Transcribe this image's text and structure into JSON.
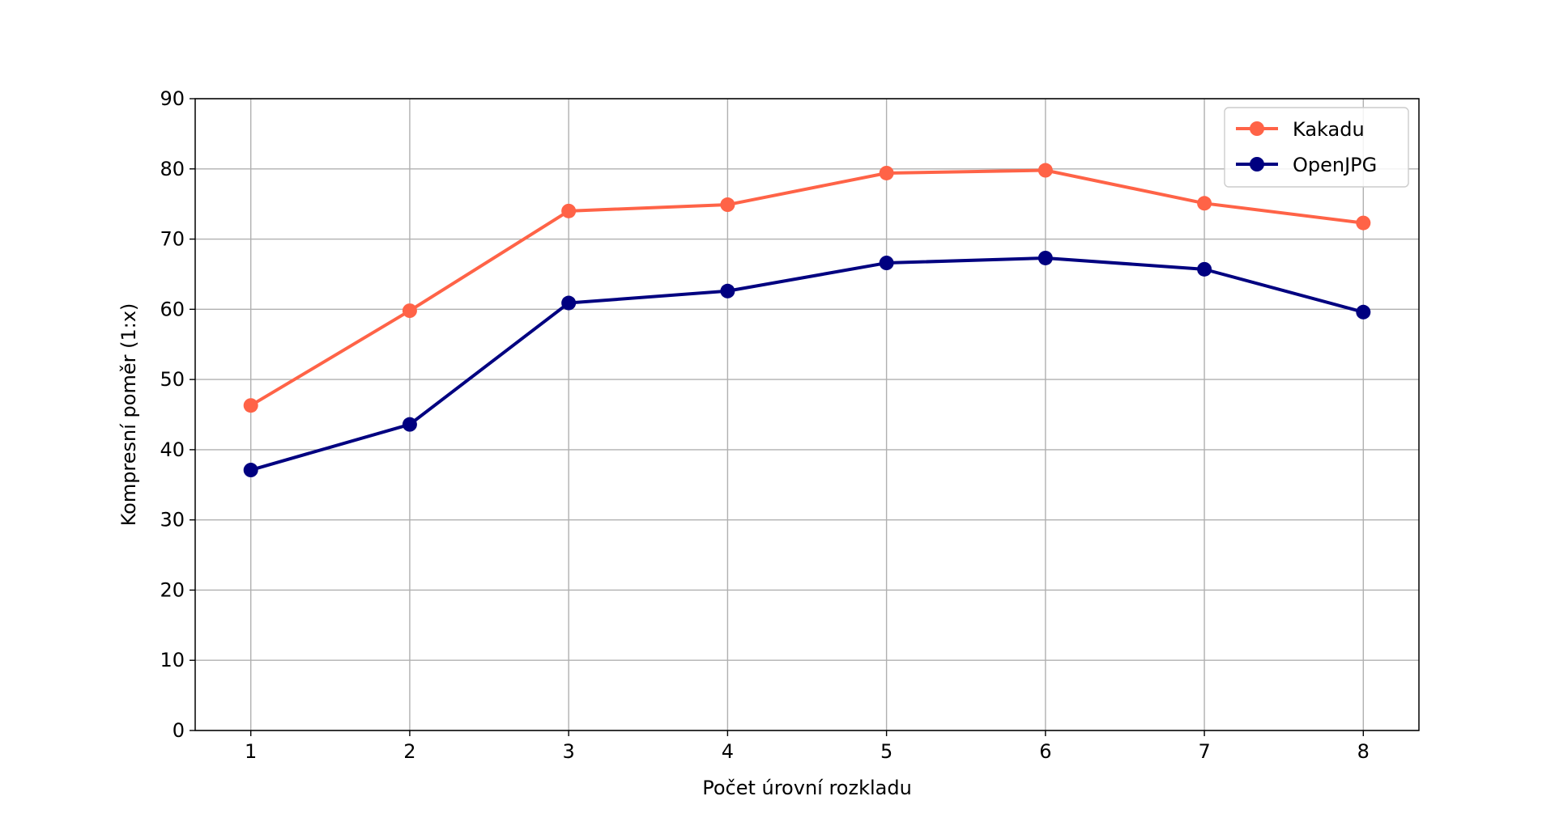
{
  "chart_data": {
    "type": "line",
    "title": "",
    "xlabel": "Počet úrovní rozkladu",
    "ylabel": "Kompresní poměr (1:x)",
    "x": [
      1,
      2,
      3,
      4,
      5,
      6,
      7,
      8
    ],
    "xlim": [
      0.65,
      8.35
    ],
    "ylim": [
      0,
      90
    ],
    "yticks": [
      0,
      10,
      20,
      30,
      40,
      50,
      60,
      70,
      80,
      90
    ],
    "grid": true,
    "legend_position": "top-right",
    "series": [
      {
        "name": "Kakadu",
        "color": "#ff6347",
        "values": [
          46.3,
          59.8,
          74.0,
          74.9,
          79.4,
          79.8,
          75.1,
          72.3
        ]
      },
      {
        "name": "OpenJPG",
        "color": "#000080",
        "values": [
          37.1,
          43.6,
          60.9,
          62.6,
          66.6,
          67.3,
          65.7,
          59.6
        ]
      }
    ]
  }
}
